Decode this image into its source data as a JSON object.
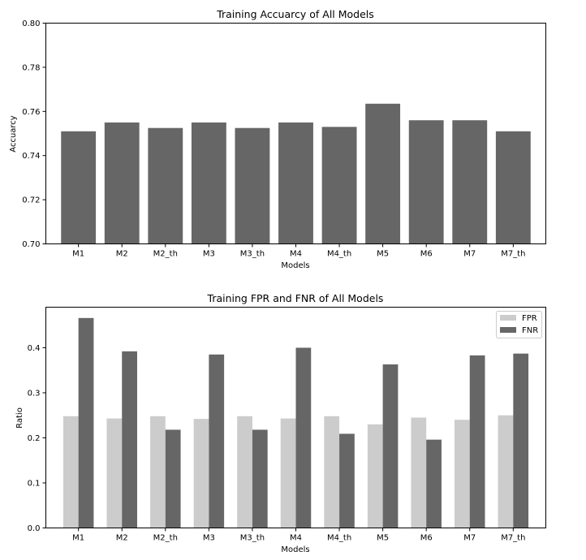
{
  "chart_data": [
    {
      "type": "bar",
      "title": "Training Accuarcy of All Models",
      "xlabel": "Models",
      "ylabel": "Accuarcy",
      "categories": [
        "M1",
        "M2",
        "M2_th",
        "M3",
        "M3_th",
        "M4",
        "M4_th",
        "M5",
        "M6",
        "M7",
        "M7_th"
      ],
      "values": [
        0.751,
        0.755,
        0.7525,
        0.755,
        0.7525,
        0.755,
        0.753,
        0.7635,
        0.756,
        0.756,
        0.751
      ],
      "ylim": [
        0.7,
        0.8
      ],
      "yticks": [
        "0.70",
        "0.72",
        "0.74",
        "0.76",
        "0.78",
        "0.80"
      ],
      "colors": {
        "bar": "#666666"
      },
      "grid": false
    },
    {
      "type": "bar",
      "title": "Training FPR and FNR of All Models",
      "xlabel": "Models",
      "ylabel": "Ratio",
      "categories": [
        "M1",
        "M2",
        "M2_th",
        "M3",
        "M3_th",
        "M4",
        "M4_th",
        "M5",
        "M6",
        "M7",
        "M7_th"
      ],
      "series": [
        {
          "name": "FPR",
          "color": "#cccccc",
          "values": [
            0.248,
            0.243,
            0.248,
            0.242,
            0.248,
            0.243,
            0.248,
            0.23,
            0.245,
            0.24,
            0.25
          ]
        },
        {
          "name": "FNR",
          "color": "#666666",
          "values": [
            0.466,
            0.392,
            0.218,
            0.385,
            0.218,
            0.4,
            0.209,
            0.363,
            0.196,
            0.383,
            0.387
          ]
        }
      ],
      "ylim": [
        0.0,
        0.49
      ],
      "yticks": [
        "0.0",
        "0.1",
        "0.2",
        "0.3",
        "0.4"
      ],
      "legend": "top-right",
      "grid": false
    }
  ]
}
